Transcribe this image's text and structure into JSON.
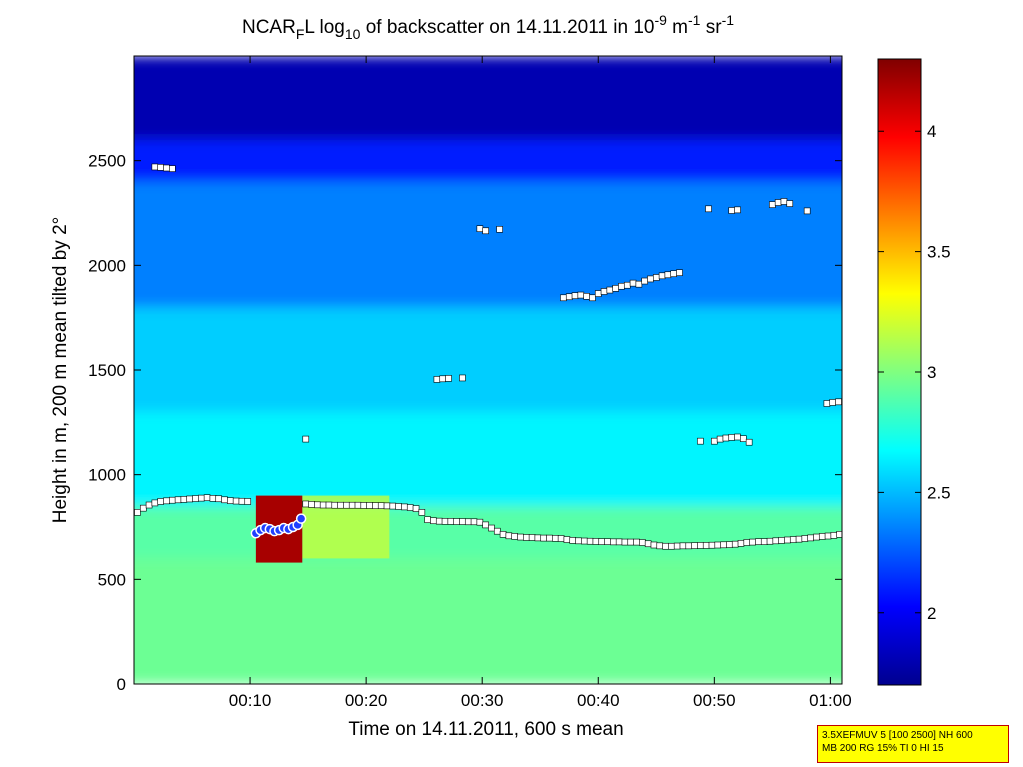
{
  "chart_data": {
    "type": "heatmap",
    "title": {
      "prefix": "NCAR",
      "sub": "F",
      "mid1": "L log",
      "sub2": "10",
      "mid2": " of backscatter on 14.11.2011 in 10",
      "sup1": "-9",
      "mid3": " m",
      "sup2": "-1",
      "mid4": " sr",
      "sup3": "-1"
    },
    "xlabel": "Time on 14.11.2011, 600 s mean",
    "ylabel": "Height in m, 200 m mean tilted by 2°",
    "x_ticks": [
      {
        "value": 10,
        "label": "00:10"
      },
      {
        "value": 20,
        "label": "00:20"
      },
      {
        "value": 30,
        "label": "00:30"
      },
      {
        "value": 40,
        "label": "00:40"
      },
      {
        "value": 50,
        "label": "00:50"
      },
      {
        "value": 60,
        "label": "01:00"
      }
    ],
    "y_ticks": [
      0,
      500,
      1000,
      1500,
      2000,
      2500
    ],
    "xlim": [
      0,
      61
    ],
    "ylim": [
      0,
      3000
    ],
    "colorbar": {
      "ticks": [
        "2",
        "2.5",
        "3",
        "3.5",
        "4"
      ],
      "range": [
        1.7,
        4.3
      ],
      "colors": [
        "#00008f",
        "#0000ff",
        "#0080ff",
        "#00ffff",
        "#80ff80",
        "#ffff00",
        "#ff8000",
        "#ff0000",
        "#800000"
      ]
    },
    "field": {
      "bands": [
        {
          "y0": 0,
          "y1": 600,
          "value": 2.95
        },
        {
          "y0": 600,
          "y1": 850,
          "value": 2.9
        },
        {
          "y0": 850,
          "y1": 1300,
          "value": 2.65
        },
        {
          "y0": 1300,
          "y1": 1800,
          "value": 2.55
        },
        {
          "y0": 1800,
          "y1": 2400,
          "value": 2.35
        },
        {
          "y0": 2400,
          "y1": 2600,
          "value": 2.1
        },
        {
          "y0": 2600,
          "y1": 3000,
          "value": 1.8
        }
      ],
      "aerosol_patch": {
        "x0": 10.5,
        "x1": 14.5,
        "y0": 580,
        "y1": 900,
        "value": 4.2
      },
      "mixed_region": {
        "x0": 14.5,
        "x1": 22,
        "y0": 600,
        "y1": 900,
        "value": 3.2
      }
    },
    "series": [
      {
        "name": "cloud_base",
        "marker": "square",
        "points": [
          [
            0.3,
            820
          ],
          [
            0.8,
            840
          ],
          [
            1.3,
            855
          ],
          [
            1.8,
            865
          ],
          [
            2.3,
            872
          ],
          [
            2.8,
            875
          ],
          [
            3.3,
            878
          ],
          [
            3.8,
            880
          ],
          [
            4.3,
            882
          ],
          [
            4.8,
            884
          ],
          [
            5.3,
            886
          ],
          [
            5.8,
            888
          ],
          [
            6.3,
            890
          ],
          [
            6.8,
            887
          ],
          [
            7.3,
            885
          ],
          [
            7.8,
            880
          ],
          [
            8.3,
            876
          ],
          [
            8.8,
            874
          ],
          [
            9.3,
            873
          ],
          [
            9.8,
            872
          ],
          [
            14.8,
            860
          ],
          [
            15.3,
            858
          ],
          [
            15.8,
            856
          ],
          [
            16.3,
            855
          ],
          [
            16.8,
            855
          ],
          [
            17.3,
            854
          ],
          [
            17.8,
            854
          ],
          [
            18.3,
            854
          ],
          [
            18.8,
            854
          ],
          [
            19.3,
            854
          ],
          [
            19.8,
            853
          ],
          [
            20.3,
            853
          ],
          [
            20.8,
            852
          ],
          [
            21.3,
            852
          ],
          [
            21.8,
            851
          ],
          [
            22.3,
            850
          ],
          [
            22.8,
            848
          ],
          [
            23.3,
            846
          ],
          [
            23.8,
            843
          ],
          [
            24.3,
            838
          ],
          [
            24.8,
            820
          ],
          [
            25.3,
            785
          ],
          [
            25.8,
            780
          ],
          [
            26.3,
            778
          ],
          [
            26.8,
            777
          ],
          [
            27.3,
            777
          ],
          [
            27.8,
            776
          ],
          [
            28.3,
            776
          ],
          [
            28.8,
            775
          ],
          [
            29.3,
            775
          ],
          [
            29.8,
            773
          ],
          [
            30.3,
            760
          ],
          [
            30.8,
            745
          ],
          [
            31.3,
            730
          ],
          [
            31.8,
            715
          ],
          [
            32.3,
            708
          ],
          [
            32.8,
            705
          ],
          [
            33.3,
            702
          ],
          [
            33.8,
            700
          ],
          [
            34.3,
            700
          ],
          [
            34.8,
            698
          ],
          [
            35.3,
            697
          ],
          [
            35.8,
            697
          ],
          [
            36.3,
            696
          ],
          [
            36.8,
            695
          ],
          [
            37.3,
            690
          ],
          [
            37.8,
            686
          ],
          [
            38.3,
            684
          ],
          [
            38.8,
            683
          ],
          [
            39.3,
            682
          ],
          [
            39.8,
            681
          ],
          [
            40.3,
            680
          ],
          [
            40.8,
            680
          ],
          [
            41.3,
            679
          ],
          [
            41.8,
            679
          ],
          [
            42.3,
            678
          ],
          [
            42.8,
            678
          ],
          [
            43.3,
            678
          ],
          [
            43.8,
            676
          ],
          [
            44.3,
            670
          ],
          [
            44.8,
            664
          ],
          [
            45.3,
            660
          ],
          [
            45.8,
            658
          ],
          [
            46.3,
            658
          ],
          [
            46.8,
            659
          ],
          [
            47.3,
            660
          ],
          [
            47.8,
            660
          ],
          [
            48.3,
            661
          ],
          [
            48.8,
            662
          ],
          [
            49.3,
            662
          ],
          [
            49.8,
            663
          ],
          [
            50.3,
            664
          ],
          [
            50.8,
            665
          ],
          [
            51.3,
            666
          ],
          [
            51.8,
            668
          ],
          [
            52.3,
            672
          ],
          [
            52.8,
            676
          ],
          [
            53.3,
            678
          ],
          [
            53.8,
            680
          ],
          [
            54.3,
            680
          ],
          [
            54.8,
            682
          ],
          [
            55.3,
            684
          ],
          [
            55.8,
            686
          ],
          [
            56.3,
            688
          ],
          [
            56.8,
            690
          ],
          [
            57.3,
            692
          ],
          [
            57.8,
            695
          ],
          [
            58.3,
            698
          ],
          [
            58.8,
            702
          ],
          [
            59.3,
            705
          ],
          [
            59.8,
            707
          ],
          [
            60.3,
            710
          ],
          [
            60.8,
            715
          ]
        ]
      },
      {
        "name": "upper_layers",
        "marker": "square",
        "points": [
          [
            1.8,
            2470
          ],
          [
            2.3,
            2468
          ],
          [
            2.8,
            2465
          ],
          [
            3.3,
            2462
          ],
          [
            14.8,
            1170
          ],
          [
            26.1,
            1455
          ],
          [
            26.6,
            1458
          ],
          [
            27.1,
            1460
          ],
          [
            28.3,
            1462
          ],
          [
            29.8,
            2175
          ],
          [
            30.3,
            2165
          ],
          [
            31.5,
            2172
          ],
          [
            37.0,
            1845
          ],
          [
            37.5,
            1850
          ],
          [
            38.0,
            1855
          ],
          [
            38.5,
            1858
          ],
          [
            39.0,
            1852
          ],
          [
            39.5,
            1845
          ],
          [
            40.0,
            1865
          ],
          [
            40.5,
            1875
          ],
          [
            41.0,
            1882
          ],
          [
            41.5,
            1890
          ],
          [
            42.0,
            1900
          ],
          [
            42.5,
            1905
          ],
          [
            43.0,
            1915
          ],
          [
            43.5,
            1910
          ],
          [
            44.0,
            1925
          ],
          [
            44.5,
            1935
          ],
          [
            45.0,
            1942
          ],
          [
            45.5,
            1950
          ],
          [
            46.0,
            1955
          ],
          [
            46.5,
            1960
          ],
          [
            47.0,
            1965
          ],
          [
            48.8,
            1160
          ],
          [
            50.0,
            1160
          ],
          [
            50.5,
            1170
          ],
          [
            51.0,
            1175
          ],
          [
            51.5,
            1178
          ],
          [
            52.0,
            1180
          ],
          [
            52.5,
            1172
          ],
          [
            53.0,
            1155
          ],
          [
            49.5,
            2270
          ],
          [
            51.5,
            2262
          ],
          [
            52.0,
            2265
          ],
          [
            55.0,
            2290
          ],
          [
            55.5,
            2300
          ],
          [
            56.0,
            2305
          ],
          [
            56.5,
            2295
          ],
          [
            58.0,
            2260
          ],
          [
            59.7,
            1340
          ],
          [
            60.2,
            1345
          ],
          [
            60.7,
            1348
          ]
        ]
      },
      {
        "name": "aerosol_layer",
        "marker": "circle",
        "points": [
          [
            10.5,
            720
          ],
          [
            10.9,
            735
          ],
          [
            11.3,
            745
          ],
          [
            11.7,
            740
          ],
          [
            12.1,
            730
          ],
          [
            12.5,
            735
          ],
          [
            12.9,
            745
          ],
          [
            13.3,
            740
          ],
          [
            13.7,
            750
          ],
          [
            14.1,
            760
          ],
          [
            14.4,
            790
          ]
        ]
      }
    ],
    "annotations": {
      "corner_box": [
        "3.5XEFMUV 5 [100 2500] NH 600",
        "MB 200 RG 15% TI 0 HI 15"
      ]
    }
  }
}
